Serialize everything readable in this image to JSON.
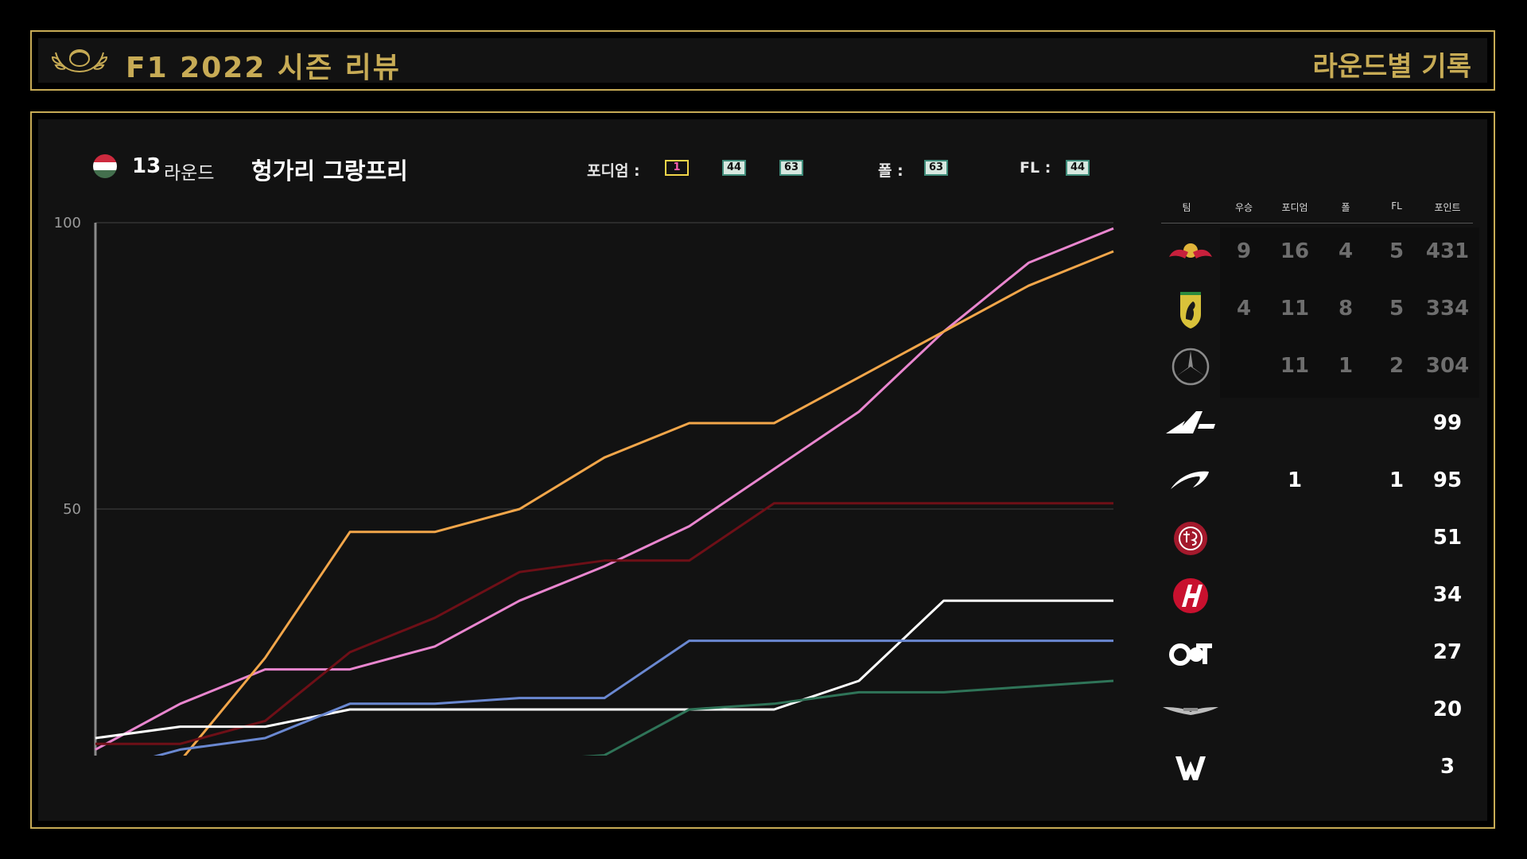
{
  "app_title": "F1 2022 시즌 리뷰",
  "section_title": "라운드별 기록",
  "race": {
    "round_number": "13",
    "round_word": "라운드",
    "name": "헝가리 그랑프리",
    "podium_label": "포디엄 :",
    "podium": [
      "1",
      "44",
      "63"
    ],
    "pole_label": "폴 :",
    "pole": "63",
    "fl_label": "FL :",
    "fastest_lap": "44"
  },
  "table": {
    "headers": [
      "팀",
      "우승",
      "포디엄",
      "폴",
      "FL",
      "포인트"
    ],
    "rows": [
      {
        "team_icon": "red-bull-logo",
        "wins": "9",
        "podiums": "16",
        "poles": "4",
        "fl": "5",
        "points": "431"
      },
      {
        "team_icon": "ferrari-logo",
        "wins": "4",
        "podiums": "11",
        "poles": "8",
        "fl": "5",
        "points": "334"
      },
      {
        "team_icon": "mercedes-logo",
        "wins": "",
        "podiums": "11",
        "poles": "1",
        "fl": "2",
        "points": "304"
      },
      {
        "team_icon": "alpine-logo",
        "wins": "",
        "podiums": "",
        "poles": "",
        "fl": "",
        "points": "99"
      },
      {
        "team_icon": "mclaren-logo",
        "wins": "",
        "podiums": "1",
        "poles": "",
        "fl": "1",
        "points": "95"
      },
      {
        "team_icon": "alfa-romeo-logo",
        "wins": "",
        "podiums": "",
        "poles": "",
        "fl": "",
        "points": "51"
      },
      {
        "team_icon": "haas-logo",
        "wins": "",
        "podiums": "",
        "poles": "",
        "fl": "",
        "points": "34"
      },
      {
        "team_icon": "alphatauri-logo",
        "wins": "",
        "podiums": "",
        "poles": "",
        "fl": "",
        "points": "27"
      },
      {
        "team_icon": "aston-martin-logo",
        "wins": "",
        "podiums": "",
        "poles": "",
        "fl": "",
        "points": "20"
      },
      {
        "team_icon": "williams-logo",
        "wins": "",
        "podiums": "",
        "poles": "",
        "fl": "",
        "points": "3"
      }
    ]
  },
  "chart_data": {
    "type": "line",
    "x": [
      1,
      2,
      3,
      4,
      5,
      6,
      7,
      8,
      9,
      10,
      11,
      12,
      13
    ],
    "ylim": [
      0,
      100
    ],
    "yticks": [
      0,
      50,
      100
    ],
    "grid": true,
    "series": [
      {
        "color": "#e986cf",
        "values": [
          8,
          16,
          22,
          22,
          26,
          34,
          40,
          47,
          57,
          67,
          81,
          93,
          99
        ]
      },
      {
        "color": "#f2a64a",
        "values": [
          0,
          6,
          24,
          46,
          46,
          50,
          59,
          65,
          65,
          73,
          81,
          89,
          95
        ]
      },
      {
        "color": "#6e0f17",
        "values": [
          9,
          9,
          13,
          25,
          31,
          39,
          41,
          41,
          51,
          51,
          51,
          51,
          51
        ]
      },
      {
        "color": "#ffffff",
        "values": [
          10,
          12,
          12,
          15,
          15,
          15,
          15,
          15,
          15,
          20,
          34,
          34,
          34
        ]
      },
      {
        "color": "#6a88d1",
        "values": [
          4,
          8,
          10,
          16,
          16,
          17,
          17,
          27,
          27,
          27,
          27,
          27,
          27
        ]
      },
      {
        "color": "#2f7458",
        "values": [
          0,
          0,
          0,
          5,
          6,
          6,
          7,
          15,
          16,
          18,
          18,
          19,
          20
        ]
      },
      {
        "color": "#a9cff5",
        "values": [
          0,
          0,
          1,
          1,
          3,
          3,
          3,
          3,
          3,
          3,
          3,
          3,
          3
        ]
      }
    ]
  }
}
